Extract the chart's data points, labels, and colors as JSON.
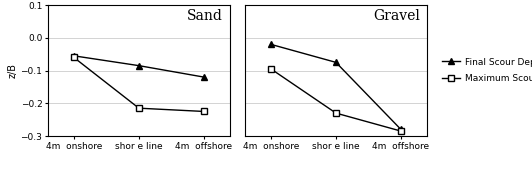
{
  "sand": {
    "title": "Sand",
    "final_scour": [
      -0.055,
      -0.085,
      -0.12
    ],
    "max_scour": [
      -0.06,
      -0.215,
      -0.225
    ]
  },
  "gravel": {
    "title": "Gravel",
    "final_scour": [
      -0.02,
      -0.075,
      -0.28
    ],
    "max_scour": [
      -0.095,
      -0.23,
      -0.285
    ]
  },
  "x_labels": [
    "4m  onshore",
    "shor e line",
    "4m  offshore"
  ],
  "x_ticks": [
    0,
    1,
    2
  ],
  "ylim": [
    -0.3,
    0.1
  ],
  "yticks": [
    -0.3,
    -0.2,
    -0.1,
    0.0,
    0.1
  ],
  "ylabel": "z/B",
  "legend_labels": [
    "Final Scour Depth",
    "Maximum Scour Depth"
  ],
  "line_color": "black",
  "marker_final": "^",
  "marker_max": "s",
  "markersize_final": 4,
  "markersize_max": 4,
  "markerfacecolor_final": "black",
  "markerfacecolor_max": "white",
  "linewidth": 1.0,
  "title_fontsize": 10,
  "axis_fontsize": 7,
  "tick_fontsize": 6.5,
  "legend_fontsize": 6.5,
  "grid_color": "#cccccc",
  "background_color": "white"
}
